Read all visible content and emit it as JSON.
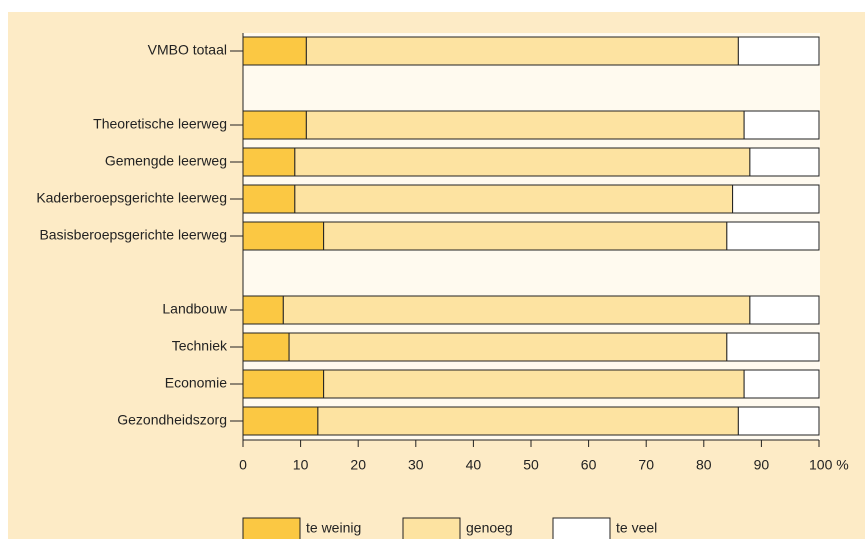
{
  "chart_data": {
    "type": "stacked-bar-horizontal",
    "categories": [
      "VMBO totaal",
      null,
      "Theoretische leerweg",
      "Gemengde leerweg",
      "Kaderberoepsgerichte leerweg",
      "Basisberoepsgerichte leerweg",
      null,
      "Landbouw",
      "Techniek",
      "Economie",
      "Gezondheidszorg"
    ],
    "series": [
      {
        "name": "te weinig",
        "color": "#fbc843",
        "values": [
          11,
          null,
          11,
          9,
          9,
          14,
          null,
          7,
          8,
          14,
          13
        ]
      },
      {
        "name": "genoeg",
        "color": "#fde3a1",
        "values": [
          75,
          null,
          76,
          79,
          76,
          70,
          null,
          81,
          76,
          73,
          73
        ]
      },
      {
        "name": "te veel",
        "color": "#ffffff",
        "values": [
          14,
          null,
          13,
          12,
          15,
          16,
          null,
          12,
          16,
          13,
          14
        ]
      }
    ],
    "xlim": [
      0,
      100
    ],
    "xticks": [
      0,
      10,
      20,
      30,
      40,
      50,
      60,
      70,
      80,
      90,
      {
        "value": 100,
        "label": "100 %"
      }
    ],
    "legend": "bottom"
  }
}
